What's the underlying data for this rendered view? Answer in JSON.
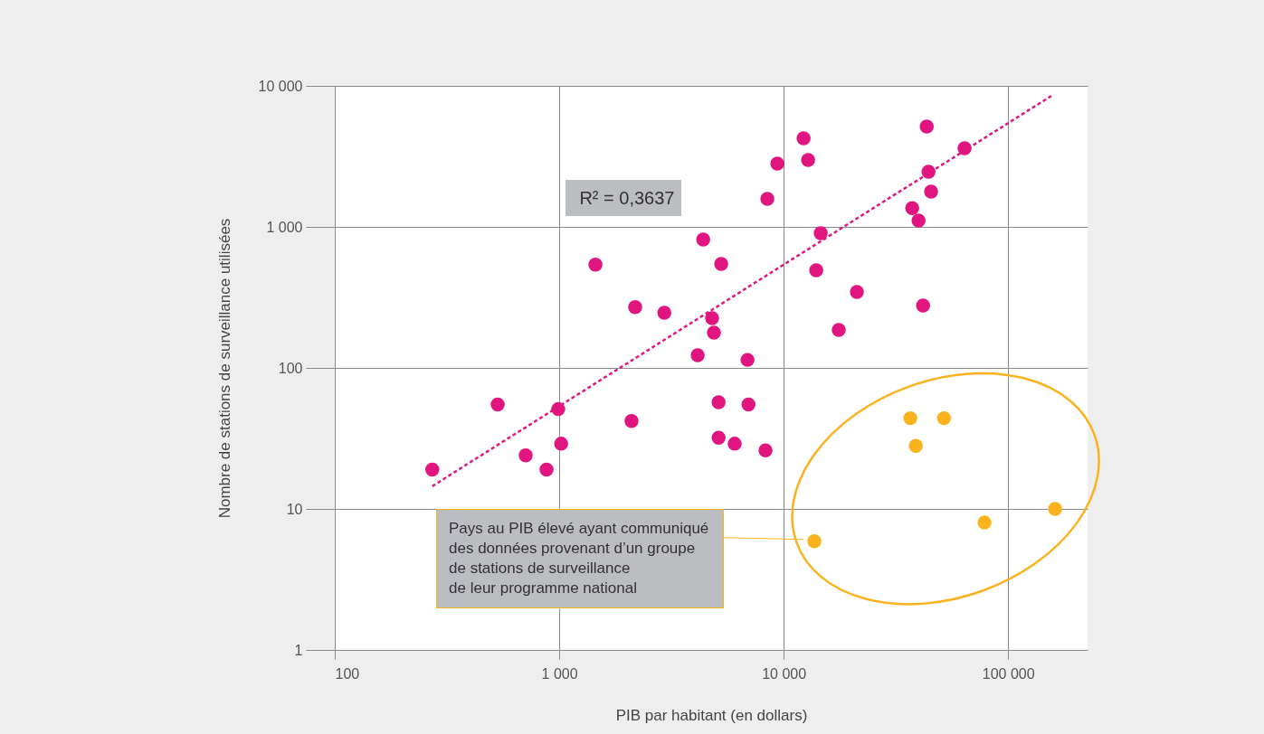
{
  "chart_data": {
    "type": "scatter",
    "xlabel": "PIB par habitant (en dollars)",
    "ylabel": "Nombre de stations de surveillance utilisées",
    "log": "xy",
    "xlim": [
      100,
      226000
    ],
    "xticks": [
      100,
      {
        "value": 1000,
        "label": "1 000"
      },
      {
        "value": 10000,
        "label": "10 000"
      },
      {
        "value": 100000,
        "label": "100 000"
      }
    ],
    "ylim": [
      1,
      10000
    ],
    "yticks": [
      1,
      10,
      100,
      {
        "value": 1000,
        "label": "1 000"
      },
      {
        "value": 10000,
        "label": "10 000"
      }
    ],
    "grid": true,
    "marker": "circle",
    "series": [
      {
        "color": "#e0157f",
        "x": [
          272,
          532,
          709,
          878,
          990,
          1020,
          1450,
          2100,
          2180,
          2940,
          4140,
          4380,
          4800,
          4890,
          5130,
          5270,
          5130,
          6050,
          6900,
          6970,
          8300,
          8460,
          9370,
          12270,
          12850,
          13970,
          14630,
          17600,
          21200,
          37400,
          39900,
          41800,
          43400,
          44200,
          45400,
          64000
        ],
        "values": [
          19,
          55,
          24,
          19,
          51,
          29,
          540,
          42,
          270,
          246,
          123,
          813,
          225,
          178,
          57,
          546,
          32,
          29,
          114,
          55,
          26,
          1580,
          2810,
          4250,
          2980,
          492,
          902,
          186,
          345,
          1360,
          1110,
          277,
          5150,
          2460,
          1780,
          3610
        ]
      },
      {
        "color": "#fbb21f",
        "x": [
          13700,
          36700,
          38800,
          51800,
          78500,
          162000
        ],
        "values": [
          5.9,
          44,
          28,
          44,
          8.0,
          10
        ]
      },
      {
        "type": "line",
        "color": "#e0157f",
        "line_style": "dashed",
        "marker": "none",
        "x": [
          272,
          156000
        ],
        "values": [
          14.5,
          8500
        ]
      }
    ],
    "annotations": [
      "R² = 0,3637",
      "Pays au PIB élevé ayant communiqué\ndes données provenant d’un groupe\nde stations de surveillance\nde leur programme national"
    ]
  }
}
